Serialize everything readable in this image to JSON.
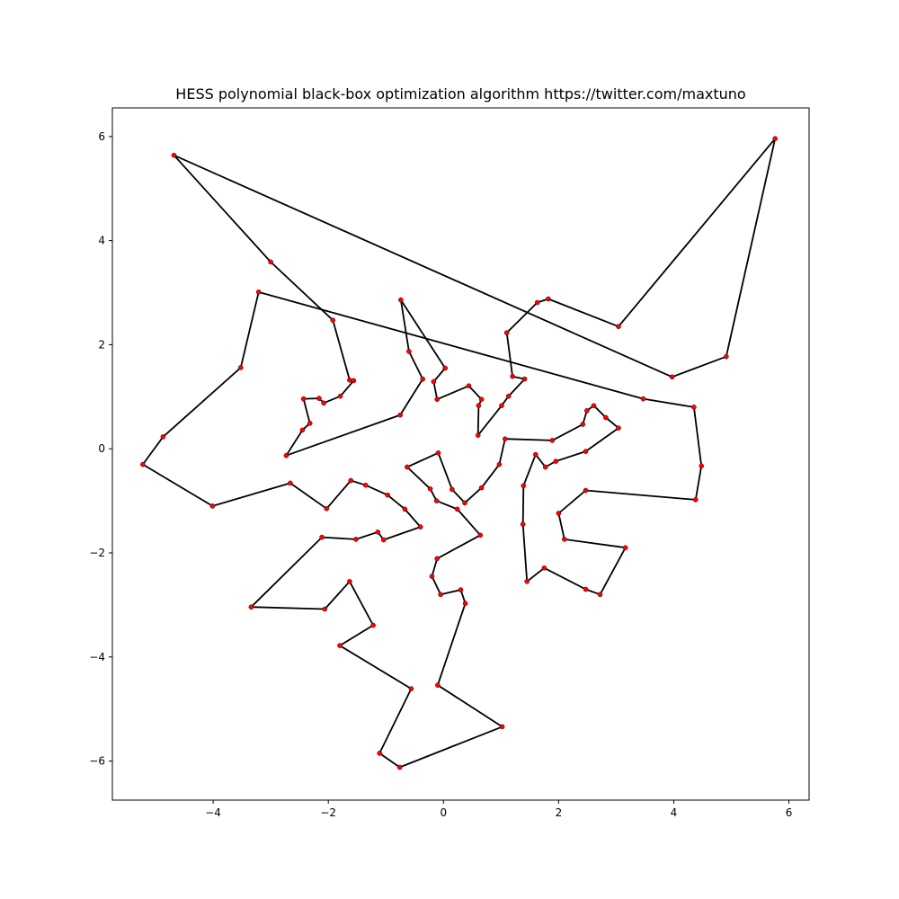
{
  "chart_data": {
    "type": "line",
    "title": "HESS polynomial black-box optimization algorithm https://twitter.com/maxtuno",
    "xlabel": "",
    "ylabel": "",
    "xlim": [
      -5.75,
      6.35
    ],
    "ylim": [
      -6.75,
      6.55
    ],
    "x_ticks": [
      -4,
      -2,
      0,
      2,
      4,
      6
    ],
    "y_ticks": [
      -6,
      -4,
      -2,
      0,
      2,
      4,
      6
    ],
    "x_tick_labels": [
      "−4",
      "−2",
      "0",
      "2",
      "4",
      "6"
    ],
    "y_tick_labels": [
      "−6",
      "−4",
      "−2",
      "0",
      "2",
      "4",
      "6"
    ],
    "grid": false,
    "colors": {
      "line": "#000000",
      "marker": "#ff0000"
    },
    "series": [
      {
        "closed": true,
        "points": [
          [
            -4.68,
            5.64
          ],
          [
            -3.0,
            3.59
          ],
          [
            -1.92,
            2.47
          ],
          [
            -1.63,
            1.32
          ],
          [
            -1.56,
            1.31
          ],
          [
            -1.79,
            1.01
          ],
          [
            -2.08,
            0.88
          ],
          [
            -2.16,
            0.97
          ],
          [
            -2.43,
            0.96
          ],
          [
            -2.32,
            0.49
          ],
          [
            -2.45,
            0.36
          ],
          [
            -2.73,
            -0.13
          ],
          [
            -0.75,
            0.65
          ],
          [
            -0.36,
            1.34
          ],
          [
            -0.6,
            1.87
          ],
          [
            -0.74,
            2.86
          ],
          [
            0.03,
            1.55
          ],
          [
            -0.17,
            1.29
          ],
          [
            -0.11,
            0.95
          ],
          [
            0.44,
            1.21
          ],
          [
            0.66,
            0.95
          ],
          [
            0.61,
            0.83
          ],
          [
            0.6,
            0.26
          ],
          [
            1.01,
            0.83
          ],
          [
            1.13,
            1.01
          ],
          [
            1.41,
            1.34
          ],
          [
            1.2,
            1.39
          ],
          [
            1.1,
            2.23
          ],
          [
            1.63,
            2.81
          ],
          [
            1.82,
            2.88
          ],
          [
            3.04,
            2.35
          ],
          [
            5.76,
            5.96
          ],
          [
            4.91,
            1.77
          ],
          [
            3.97,
            1.38
          ]
        ]
      },
      {
        "closed": true,
        "points": [
          [
            3.47,
            0.96
          ],
          [
            4.35,
            0.8
          ],
          [
            4.48,
            -0.33
          ],
          [
            4.38,
            -0.98
          ],
          [
            2.47,
            -0.8
          ],
          [
            2.0,
            -1.24
          ],
          [
            2.1,
            -1.74
          ],
          [
            3.16,
            -1.9
          ],
          [
            2.72,
            -2.8
          ],
          [
            2.47,
            -2.7
          ],
          [
            1.75,
            -2.29
          ],
          [
            1.45,
            -2.55
          ],
          [
            1.38,
            -1.45
          ],
          [
            1.39,
            -0.71
          ],
          [
            1.6,
            -0.11
          ],
          [
            1.77,
            -0.35
          ],
          [
            1.95,
            -0.24
          ],
          [
            2.47,
            -0.05
          ],
          [
            3.04,
            0.4
          ],
          [
            2.82,
            0.6
          ],
          [
            2.61,
            0.83
          ],
          [
            2.49,
            0.73
          ],
          [
            2.42,
            0.47
          ],
          [
            1.89,
            0.16
          ],
          [
            1.07,
            0.19
          ],
          [
            0.97,
            -0.3
          ],
          [
            0.66,
            -0.75
          ],
          [
            0.37,
            -1.04
          ],
          [
            0.15,
            -0.78
          ],
          [
            -0.09,
            -0.08
          ],
          [
            -0.63,
            -0.35
          ],
          [
            -0.23,
            -0.77
          ],
          [
            -0.12,
            -1.0
          ],
          [
            0.24,
            -1.16
          ],
          [
            0.64,
            -1.66
          ],
          [
            -0.11,
            -2.11
          ],
          [
            -0.2,
            -2.45
          ],
          [
            -0.05,
            -2.8
          ],
          [
            0.3,
            -2.71
          ],
          [
            0.38,
            -2.97
          ],
          [
            -0.1,
            -4.54
          ],
          [
            1.02,
            -5.34
          ],
          [
            -0.76,
            -6.12
          ],
          [
            -1.11,
            -5.85
          ],
          [
            -0.56,
            -4.61
          ],
          [
            -1.8,
            -3.78
          ],
          [
            -1.22,
            -3.39
          ],
          [
            -1.63,
            -2.55
          ],
          [
            -2.06,
            -3.08
          ],
          [
            -3.34,
            -3.04
          ],
          [
            -2.11,
            -1.7
          ],
          [
            -1.52,
            -1.74
          ],
          [
            -1.14,
            -1.6
          ],
          [
            -1.04,
            -1.75
          ],
          [
            -0.4,
            -1.5
          ],
          [
            -0.67,
            -1.16
          ],
          [
            -0.97,
            -0.89
          ],
          [
            -1.35,
            -0.7
          ],
          [
            -1.61,
            -0.61
          ],
          [
            -2.03,
            -1.15
          ],
          [
            -2.66,
            -0.66
          ],
          [
            -4.01,
            -1.1
          ],
          [
            -5.22,
            -0.3
          ],
          [
            -4.87,
            0.23
          ],
          [
            -3.52,
            1.56
          ],
          [
            -3.21,
            3.01
          ]
        ]
      }
    ]
  }
}
